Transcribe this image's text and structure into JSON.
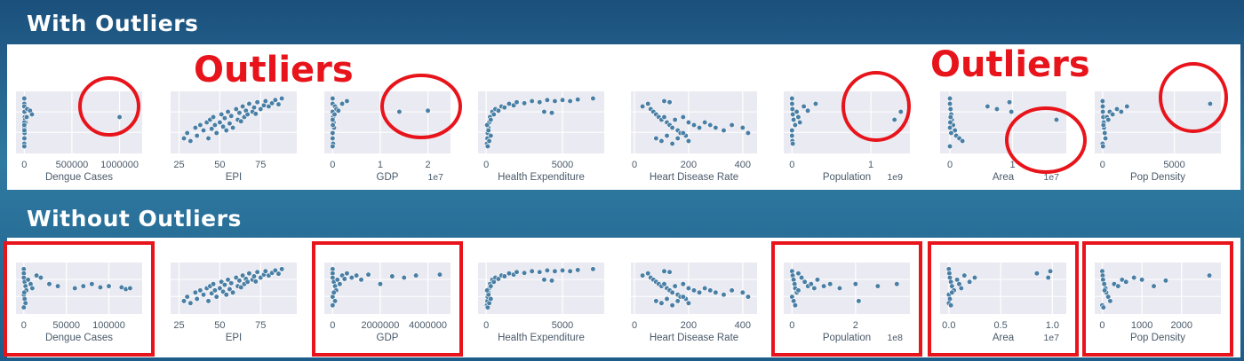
{
  "sections": {
    "with_title": "With Outliers",
    "without_title": "Without Outliers",
    "callout_left": "Outliers",
    "callout_right": "Outliers"
  },
  "colors": {
    "point": "#4a7fa5",
    "panel_bg": "#eaeaf2",
    "highlight": "#e8141b"
  },
  "chart_data": [
    {
      "type": "scatter",
      "panel": "with-outliers",
      "xlabel": "Dengue Cases",
      "xlim": [
        -50000,
        1200000
      ],
      "ticks": [
        "0",
        "500000",
        "1000000"
      ],
      "tick_values": [
        0,
        500000,
        1000000
      ],
      "offset": "",
      "highlight": "circle",
      "x": [
        0,
        0,
        0,
        2000,
        5000,
        8000,
        15000,
        30000,
        60000,
        80000,
        0,
        3000,
        1000,
        0,
        0,
        500,
        25000,
        0,
        1000,
        1000000
      ],
      "y": [
        95,
        85,
        80,
        70,
        60,
        55,
        50,
        75,
        72,
        65,
        40,
        30,
        20,
        10,
        5,
        50,
        60,
        45,
        35,
        60
      ]
    },
    {
      "type": "scatter",
      "panel": "with-outliers",
      "xlabel": "EPI",
      "xlim": [
        22,
        95
      ],
      "ticks": [
        "25",
        "50",
        "75"
      ],
      "tick_values": [
        25,
        50,
        75
      ],
      "offset": "",
      "highlight": "none",
      "x": [
        28,
        30,
        32,
        35,
        36,
        38,
        40,
        42,
        43,
        44,
        45,
        46,
        47,
        48,
        50,
        51,
        52,
        53,
        54,
        55,
        56,
        57,
        58,
        60,
        61,
        62,
        63,
        64,
        65,
        66,
        67,
        68,
        70,
        71,
        72,
        73,
        75,
        77,
        78,
        80,
        82,
        84,
        86,
        88
      ],
      "y": [
        20,
        30,
        15,
        40,
        25,
        45,
        35,
        50,
        20,
        55,
        38,
        60,
        45,
        30,
        50,
        65,
        42,
        58,
        35,
        70,
        48,
        62,
        40,
        75,
        55,
        68,
        52,
        80,
        60,
        72,
        65,
        85,
        70,
        78,
        66,
        88,
        75,
        82,
        90,
        80,
        86,
        92,
        84,
        95
      ]
    },
    {
      "type": "scatter",
      "panel": "with-outliers",
      "xlabel": "GDP",
      "xlim": [
        -1000000,
        24000000
      ],
      "ticks": [
        "0",
        "1",
        "2"
      ],
      "tick_values": [
        0,
        10000000,
        20000000
      ],
      "offset": "1e7",
      "highlight": "circle",
      "x": [
        0,
        0,
        0,
        100000,
        200000,
        300000,
        500000,
        800000,
        1200000,
        2000000,
        3000000,
        0,
        0,
        100000,
        0,
        0,
        50000,
        400000,
        14000000,
        20000000
      ],
      "y": [
        95,
        85,
        70,
        60,
        50,
        40,
        80,
        75,
        72,
        85,
        90,
        30,
        20,
        10,
        5,
        55,
        45,
        65,
        70,
        72
      ]
    },
    {
      "type": "scatter",
      "panel": "with-outliers",
      "xlabel": "Health Expenditure",
      "xlim": [
        -300,
        7500
      ],
      "ticks": [
        "0",
        "5000"
      ],
      "tick_values": [
        0,
        5000
      ],
      "offset": "",
      "highlight": "none",
      "x": [
        50,
        80,
        100,
        150,
        200,
        250,
        300,
        400,
        500,
        600,
        800,
        1000,
        1200,
        1500,
        1800,
        2000,
        2500,
        3000,
        3500,
        4000,
        4500,
        5000,
        5500,
        6000,
        7000,
        100,
        200,
        300,
        150,
        60,
        3800,
        4300
      ],
      "y": [
        10,
        20,
        30,
        40,
        50,
        60,
        55,
        70,
        65,
        75,
        72,
        80,
        78,
        85,
        82,
        88,
        86,
        90,
        88,
        92,
        90,
        92,
        90,
        93,
        95,
        5,
        15,
        25,
        35,
        45,
        70,
        68
      ]
    },
    {
      "type": "scatter",
      "panel": "with-outliers",
      "xlabel": "Heart Disease Rate",
      "xlim": [
        0,
        440
      ],
      "ticks": [
        "0",
        "200",
        "400"
      ],
      "tick_values": [
        0,
        200,
        400
      ],
      "offset": "",
      "highlight": "none",
      "x": [
        30,
        50,
        60,
        70,
        80,
        90,
        100,
        110,
        120,
        130,
        140,
        150,
        160,
        170,
        180,
        190,
        200,
        220,
        240,
        260,
        280,
        300,
        330,
        360,
        400,
        420,
        80,
        100,
        120,
        140,
        160,
        180,
        200,
        110,
        130
      ],
      "y": [
        80,
        85,
        75,
        70,
        65,
        60,
        55,
        60,
        50,
        45,
        40,
        55,
        35,
        30,
        60,
        25,
        50,
        45,
        40,
        50,
        45,
        40,
        35,
        45,
        40,
        30,
        20,
        15,
        25,
        10,
        20,
        30,
        15,
        90,
        88
      ]
    },
    {
      "type": "scatter",
      "panel": "with-outliers",
      "xlabel": "Population",
      "xlim": [
        -60000000,
        1450000000
      ],
      "ticks": [
        "0",
        "1"
      ],
      "tick_values": [
        0,
        1000000000
      ],
      "offset": "1e9",
      "highlight": "circle",
      "x": [
        0,
        1000000,
        5000000,
        10000000,
        20000000,
        40000000,
        60000000,
        80000000,
        100000000,
        150000000,
        200000000,
        300000000,
        0,
        0,
        5000000,
        10000000,
        1300000000,
        1380000000
      ],
      "y": [
        95,
        85,
        75,
        65,
        55,
        45,
        70,
        60,
        50,
        80,
        72,
        85,
        35,
        25,
        15,
        10,
        55,
        70
      ]
    },
    {
      "type": "scatter",
      "panel": "with-outliers",
      "xlabel": "Area",
      "xlim": [
        -1000000,
        18000000
      ],
      "ticks": [
        "0",
        "1"
      ],
      "tick_values": [
        0,
        10000000
      ],
      "offset": "1e7",
      "highlight": "circle",
      "x": [
        0,
        0,
        100000,
        200000,
        300000,
        500000,
        800000,
        1000000,
        1500000,
        2000000,
        0,
        50000,
        100000,
        0,
        200000,
        6000000,
        7500000,
        9500000,
        9800000,
        17000000
      ],
      "y": [
        95,
        85,
        75,
        65,
        55,
        45,
        35,
        25,
        20,
        15,
        5,
        50,
        60,
        40,
        30,
        80,
        75,
        88,
        70,
        55
      ]
    },
    {
      "type": "scatter",
      "panel": "with-outliers",
      "xlabel": "Pop Density",
      "xlim": [
        -300,
        8000
      ],
      "ticks": [
        "0",
        "5000"
      ],
      "tick_values": [
        0,
        5000
      ],
      "offset": "",
      "highlight": "circle",
      "x": [
        0,
        10,
        20,
        50,
        80,
        100,
        150,
        200,
        300,
        400,
        500,
        700,
        1000,
        1300,
        0,
        30,
        60,
        1700,
        7500
      ],
      "y": [
        90,
        80,
        70,
        60,
        50,
        40,
        30,
        20,
        60,
        55,
        70,
        65,
        75,
        70,
        10,
        5,
        45,
        80,
        85
      ]
    },
    {
      "type": "scatter",
      "panel": "without-outliers",
      "xlabel": "Dengue Cases",
      "xlim": [
        -5000,
        135000
      ],
      "ticks": [
        "0",
        "50000",
        "100000"
      ],
      "tick_values": [
        0,
        50000,
        100000
      ],
      "offset": "",
      "highlight": "box",
      "x": [
        0,
        0,
        0,
        1000,
        2000,
        3000,
        5000,
        8000,
        10000,
        15000,
        20000,
        30000,
        40000,
        60000,
        70000,
        80000,
        90000,
        100000,
        115000,
        120000,
        125000,
        0,
        1000,
        2000,
        0,
        500
      ],
      "y": [
        95,
        85,
        75,
        65,
        55,
        45,
        70,
        60,
        50,
        80,
        75,
        60,
        55,
        50,
        55,
        60,
        52,
        55,
        52,
        48,
        50,
        35,
        25,
        15,
        5,
        40
      ]
    },
    {
      "type": "scatter",
      "panel": "without-outliers",
      "xlabel": "EPI",
      "xlim": [
        22,
        95
      ],
      "ticks": [
        "25",
        "50",
        "75"
      ],
      "tick_values": [
        25,
        50,
        75
      ],
      "offset": "",
      "highlight": "none",
      "x": [
        28,
        30,
        32,
        35,
        36,
        38,
        40,
        42,
        43,
        44,
        45,
        46,
        47,
        48,
        50,
        51,
        52,
        53,
        54,
        55,
        56,
        57,
        58,
        60,
        61,
        62,
        63,
        64,
        65,
        66,
        67,
        68,
        70,
        71,
        72,
        73,
        75,
        77,
        78,
        80,
        82,
        84,
        86,
        88
      ],
      "y": [
        20,
        30,
        15,
        40,
        25,
        45,
        35,
        50,
        20,
        55,
        38,
        60,
        45,
        30,
        50,
        65,
        42,
        58,
        35,
        70,
        48,
        62,
        40,
        75,
        55,
        68,
        52,
        80,
        60,
        72,
        65,
        85,
        70,
        78,
        66,
        88,
        75,
        82,
        90,
        80,
        86,
        92,
        84,
        95
      ]
    },
    {
      "type": "scatter",
      "panel": "without-outliers",
      "xlabel": "GDP",
      "xlim": [
        -200000,
        4800000
      ],
      "ticks": [
        "0",
        "2000000",
        "4000000"
      ],
      "tick_values": [
        0,
        2000000,
        4000000
      ],
      "offset": "",
      "highlight": "box",
      "x": [
        0,
        0,
        0,
        50000,
        100000,
        150000,
        200000,
        300000,
        400000,
        500000,
        600000,
        800000,
        1000000,
        1200000,
        1500000,
        2000000,
        2500000,
        3000000,
        3500000,
        4500000,
        0,
        100000,
        0,
        50000
      ],
      "y": [
        95,
        85,
        75,
        65,
        55,
        45,
        70,
        60,
        80,
        72,
        85,
        75,
        80,
        70,
        82,
        60,
        78,
        75,
        80,
        82,
        30,
        20,
        10,
        40
      ]
    },
    {
      "type": "scatter",
      "panel": "without-outliers",
      "xlabel": "Health Expenditure",
      "xlim": [
        -300,
        7500
      ],
      "ticks": [
        "0",
        "5000"
      ],
      "tick_values": [
        0,
        5000
      ],
      "offset": "",
      "highlight": "none",
      "x": [
        50,
        80,
        100,
        150,
        200,
        250,
        300,
        400,
        500,
        600,
        800,
        1000,
        1200,
        1500,
        1800,
        2000,
        2500,
        3000,
        3500,
        4000,
        4500,
        5000,
        5500,
        6000,
        7000,
        100,
        200,
        300,
        150,
        60,
        3800,
        4300
      ],
      "y": [
        10,
        20,
        30,
        40,
        50,
        60,
        55,
        70,
        65,
        75,
        72,
        80,
        78,
        85,
        82,
        88,
        86,
        90,
        88,
        92,
        90,
        92,
        90,
        93,
        95,
        5,
        15,
        25,
        35,
        45,
        70,
        68
      ]
    },
    {
      "type": "scatter",
      "panel": "without-outliers",
      "xlabel": "Heart Disease Rate",
      "xlim": [
        0,
        440
      ],
      "ticks": [
        "0",
        "200",
        "400"
      ],
      "tick_values": [
        0,
        200,
        400
      ],
      "offset": "",
      "highlight": "none",
      "x": [
        30,
        50,
        60,
        70,
        80,
        90,
        100,
        110,
        120,
        130,
        140,
        150,
        160,
        170,
        180,
        190,
        200,
        220,
        240,
        260,
        280,
        300,
        330,
        360,
        400,
        420,
        80,
        100,
        120,
        140,
        160,
        180,
        200,
        110,
        130
      ],
      "y": [
        80,
        85,
        75,
        70,
        65,
        60,
        55,
        60,
        50,
        45,
        40,
        55,
        35,
        30,
        60,
        25,
        50,
        45,
        40,
        50,
        45,
        40,
        35,
        45,
        40,
        30,
        20,
        15,
        25,
        10,
        20,
        30,
        15,
        90,
        88
      ]
    },
    {
      "type": "scatter",
      "panel": "without-outliers",
      "xlabel": "Population",
      "xlim": [
        -15000000,
        360000000
      ],
      "ticks": [
        "0",
        "2"
      ],
      "tick_values": [
        0,
        200000000
      ],
      "offset": "1e8",
      "highlight": "box",
      "x": [
        0,
        2000000,
        5000000,
        8000000,
        10000000,
        15000000,
        20000000,
        30000000,
        40000000,
        50000000,
        60000000,
        70000000,
        80000000,
        100000000,
        120000000,
        150000000,
        200000000,
        210000000,
        270000000,
        330000000,
        0,
        5000000,
        10000000,
        20000000
      ],
      "y": [
        90,
        80,
        70,
        60,
        50,
        40,
        85,
        75,
        65,
        55,
        60,
        50,
        70,
        55,
        60,
        50,
        60,
        20,
        55,
        60,
        30,
        20,
        10,
        45
      ]
    },
    {
      "type": "scatter",
      "panel": "without-outliers",
      "xlabel": "Area",
      "xlim": [
        -500000,
        11000000
      ],
      "ticks": [
        "0.0",
        "0.5",
        "1.0"
      ],
      "tick_values": [
        0,
        5000000,
        10000000
      ],
      "offset": "1e7",
      "highlight": "box",
      "x": [
        0,
        50000,
        100000,
        200000,
        300000,
        500000,
        800000,
        1000000,
        1200000,
        1500000,
        2000000,
        2500000,
        0,
        100000,
        0,
        200000,
        8500000,
        9600000,
        9800000,
        300000
      ],
      "y": [
        95,
        85,
        75,
        65,
        55,
        45,
        70,
        60,
        50,
        80,
        65,
        75,
        35,
        25,
        15,
        10,
        85,
        75,
        90,
        40
      ]
    },
    {
      "type": "scatter",
      "panel": "without-outliers",
      "xlabel": "Pop Density",
      "xlim": [
        -100,
        2900
      ],
      "ticks": [
        "0",
        "1000",
        "2000"
      ],
      "tick_values": [
        0,
        1000,
        2000
      ],
      "offset": "",
      "highlight": "box",
      "x": [
        0,
        10,
        20,
        50,
        80,
        100,
        150,
        200,
        300,
        400,
        500,
        600,
        800,
        1000,
        1300,
        1600,
        2700,
        0,
        30,
        60
      ],
      "y": [
        90,
        80,
        70,
        60,
        50,
        40,
        30,
        20,
        60,
        55,
        70,
        65,
        75,
        70,
        55,
        68,
        80,
        10,
        5,
        45
      ]
    }
  ]
}
